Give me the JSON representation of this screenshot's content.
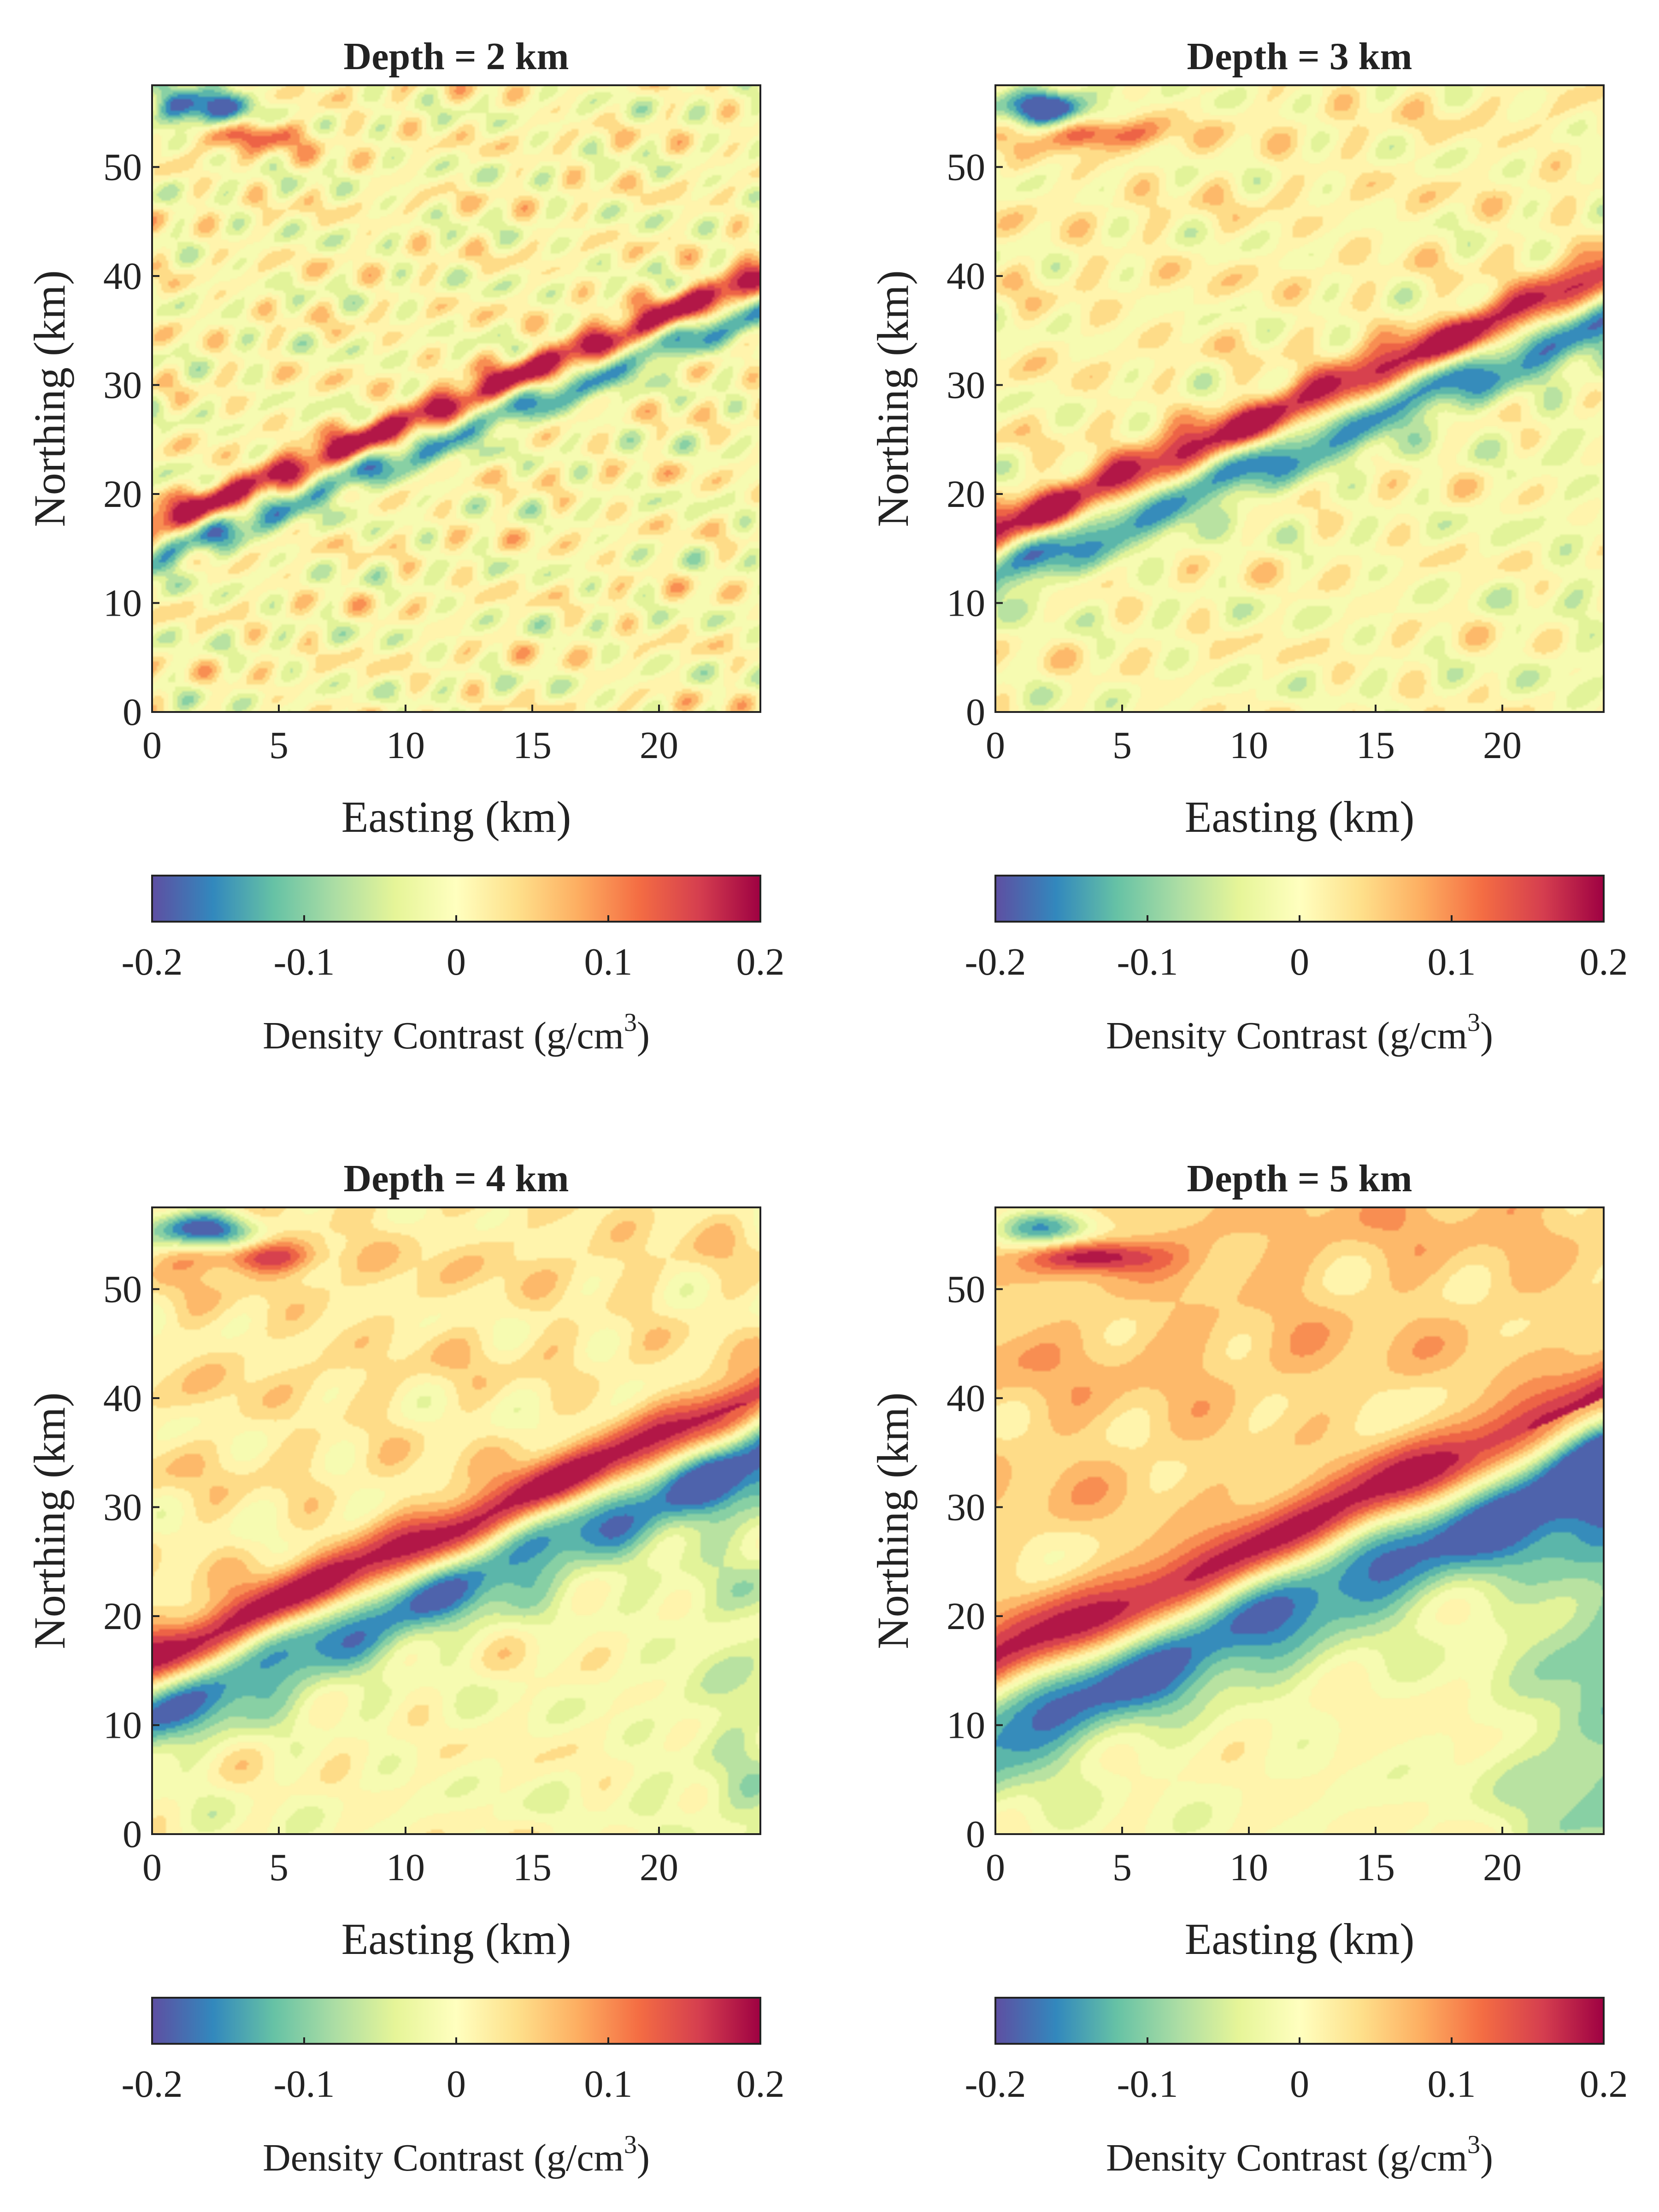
{
  "colormap": {
    "name": "Spectral (reversed)",
    "stops": [
      "#5e4fa2",
      "#3288bd",
      "#66c2a5",
      "#abdda4",
      "#e6f598",
      "#ffffbf",
      "#fee08b",
      "#fdae61",
      "#f46d43",
      "#d53e4f",
      "#9e0142"
    ]
  },
  "chart_data": [
    {
      "type": "heatmap",
      "title": "Depth = 2 km",
      "depth_km": 2,
      "xlabel": "Easting (km)",
      "ylabel": "Northing (km)",
      "xlim": [
        0,
        24
      ],
      "ylim": [
        0,
        57.5
      ],
      "xticks": [
        "0",
        "5",
        "10",
        "15",
        "20"
      ],
      "yticks": [
        "0",
        "10",
        "20",
        "30",
        "40",
        "50"
      ],
      "colorbar": {
        "label": "Density Contrast (g/cm",
        "label_sup": "3",
        "label_end": ")",
        "range": [
          -0.2,
          0.2
        ],
        "ticks": [
          "-0.2",
          "-0.1",
          "0",
          "0.1",
          "0.2"
        ]
      },
      "field": {
        "ridge_start_northing": 17,
        "ridge_end_northing": 40,
        "ridge_halfwidth_km": 1.1,
        "trough_offset_km": -3.2,
        "trough_halfwidth_km": 1.2,
        "ridge_amp": 0.2,
        "trough_amp": -0.13,
        "noise_amp": 0.1,
        "noise_scale": 1.0,
        "broad_amp": 0.0,
        "corner_anomaly": -0.22
      }
    },
    {
      "type": "heatmap",
      "title": "Depth = 3 km",
      "depth_km": 3,
      "xlabel": "Easting (km)",
      "ylabel": "Northing (km)",
      "xlim": [
        0,
        24
      ],
      "ylim": [
        0,
        57.5
      ],
      "xticks": [
        "0",
        "5",
        "10",
        "15",
        "20"
      ],
      "yticks": [
        "0",
        "10",
        "20",
        "30",
        "40",
        "50"
      ],
      "colorbar": {
        "label": "Density Contrast (g/cm",
        "label_sup": "3",
        "label_end": ")",
        "range": [
          -0.2,
          0.2
        ],
        "ticks": [
          "-0.2",
          "-0.1",
          "0",
          "0.1",
          "0.2"
        ]
      },
      "field": {
        "ridge_start_northing": 16.5,
        "ridge_end_northing": 40,
        "ridge_halfwidth_km": 1.6,
        "trough_offset_km": -4.0,
        "trough_halfwidth_km": 2.0,
        "ridge_amp": 0.21,
        "trough_amp": -0.15,
        "noise_amp": 0.08,
        "noise_scale": 1.3,
        "broad_amp": 0.01,
        "corner_anomaly": -0.22
      }
    },
    {
      "type": "heatmap",
      "title": "Depth = 4 km",
      "depth_km": 4,
      "xlabel": "Easting (km)",
      "ylabel": "Northing (km)",
      "xlim": [
        0,
        24
      ],
      "ylim": [
        0,
        57.5
      ],
      "xticks": [
        "0",
        "5",
        "10",
        "15",
        "20"
      ],
      "yticks": [
        "0",
        "10",
        "20",
        "30",
        "40",
        "50"
      ],
      "colorbar": {
        "label": "Density Contrast (g/cm",
        "label_sup": "3",
        "label_end": ")",
        "range": [
          -0.2,
          0.2
        ],
        "ticks": [
          "-0.2",
          "-0.1",
          "0",
          "0.1",
          "0.2"
        ]
      },
      "field": {
        "ridge_start_northing": 16,
        "ridge_end_northing": 40,
        "ridge_halfwidth_km": 2.1,
        "trough_offset_km": -5.0,
        "trough_halfwidth_km": 2.8,
        "ridge_amp": 0.22,
        "trough_amp": -0.17,
        "noise_amp": 0.06,
        "noise_scale": 1.7,
        "broad_amp": 0.03,
        "corner_anomaly": -0.22
      }
    },
    {
      "type": "heatmap",
      "title": "Depth = 5 km",
      "depth_km": 5,
      "xlabel": "Easting (km)",
      "ylabel": "Northing (km)",
      "xlim": [
        0,
        24
      ],
      "ylim": [
        0,
        57.5
      ],
      "xticks": [
        "0",
        "5",
        "10",
        "15",
        "20"
      ],
      "yticks": [
        "0",
        "10",
        "20",
        "30",
        "40",
        "50"
      ],
      "colorbar": {
        "label": "Density Contrast (g/cm",
        "label_sup": "3",
        "label_end": ")",
        "range": [
          -0.2,
          0.2
        ],
        "ticks": [
          "-0.2",
          "-0.1",
          "0",
          "0.1",
          "0.2"
        ]
      },
      "field": {
        "ridge_start_northing": 15.5,
        "ridge_end_northing": 40,
        "ridge_halfwidth_km": 2.6,
        "trough_offset_km": -6.0,
        "trough_halfwidth_km": 3.8,
        "ridge_amp": 0.23,
        "trough_amp": -0.19,
        "noise_amp": 0.05,
        "noise_scale": 2.2,
        "broad_amp": 0.06,
        "corner_anomaly": -0.22
      }
    }
  ]
}
